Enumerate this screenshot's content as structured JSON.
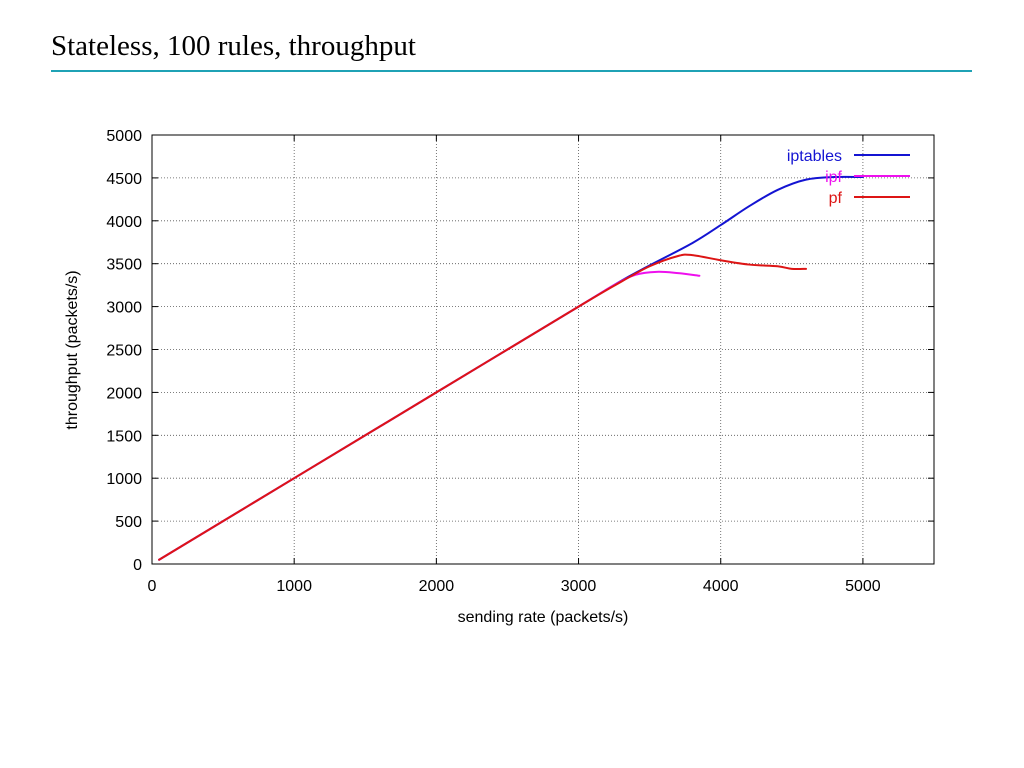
{
  "slide": {
    "title": "Stateless, 100 rules, throughput",
    "rule_color": "#1fa2b5"
  },
  "chart_data": {
    "type": "line",
    "title": "",
    "xlabel": "sending rate (packets/s)",
    "ylabel": "throughput (packets/s)",
    "xlim": [
      0,
      5500
    ],
    "ylim": [
      0,
      5000
    ],
    "x_ticks": [
      0,
      1000,
      2000,
      3000,
      4000,
      5000
    ],
    "y_ticks": [
      0,
      500,
      1000,
      1500,
      2000,
      2500,
      3000,
      3500,
      4000,
      4500,
      5000
    ],
    "grid": true,
    "legend_position": "top-right",
    "series": [
      {
        "name": "iptables",
        "color": "#1414d2",
        "points": [
          [
            50,
            50
          ],
          [
            1000,
            1000
          ],
          [
            2000,
            2000
          ],
          [
            3000,
            3000
          ],
          [
            3300,
            3300
          ],
          [
            3500,
            3480
          ],
          [
            3800,
            3740
          ],
          [
            4000,
            3950
          ],
          [
            4200,
            4170
          ],
          [
            4400,
            4360
          ],
          [
            4600,
            4480
          ],
          [
            4800,
            4510
          ],
          [
            5000,
            4510
          ]
        ]
      },
      {
        "name": "ipf",
        "color": "#ee10ee",
        "points": [
          [
            50,
            50
          ],
          [
            1000,
            1000
          ],
          [
            2000,
            2000
          ],
          [
            3000,
            3000
          ],
          [
            3250,
            3250
          ],
          [
            3400,
            3370
          ],
          [
            3550,
            3405
          ],
          [
            3700,
            3390
          ],
          [
            3850,
            3360
          ]
        ]
      },
      {
        "name": "pf",
        "color": "#dd1515",
        "points": [
          [
            50,
            50
          ],
          [
            1000,
            1000
          ],
          [
            2000,
            2000
          ],
          [
            3000,
            3000
          ],
          [
            3300,
            3290
          ],
          [
            3500,
            3470
          ],
          [
            3700,
            3590
          ],
          [
            3800,
            3600
          ],
          [
            4000,
            3540
          ],
          [
            4200,
            3490
          ],
          [
            4400,
            3470
          ],
          [
            4500,
            3440
          ],
          [
            4600,
            3440
          ]
        ]
      }
    ]
  }
}
